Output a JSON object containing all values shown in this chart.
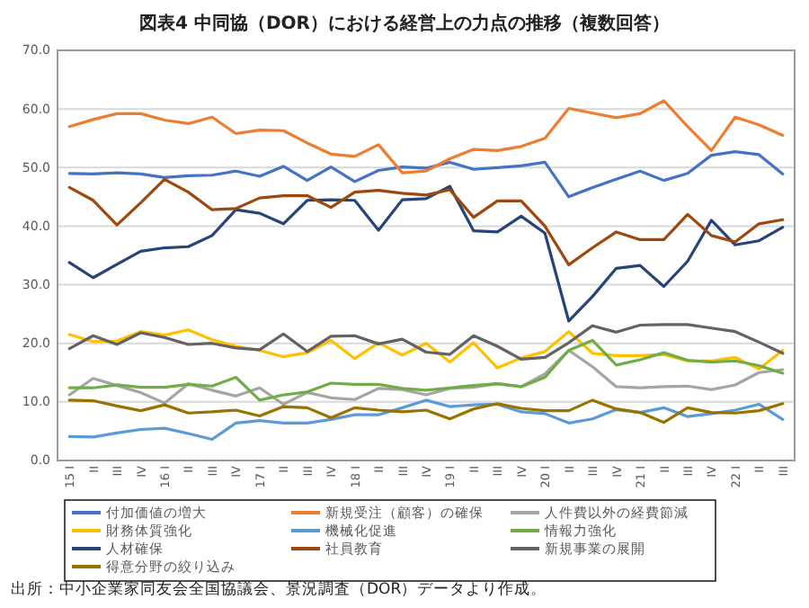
{
  "chart_data": {
    "type": "line",
    "title": "図表4 中同協（DOR）における経営上の力点の推移（複数回答）",
    "categories": [
      "15 I",
      "II",
      "III",
      "IV",
      "16 I",
      "II",
      "III",
      "IV",
      "17 I",
      "II",
      "III",
      "IV",
      "18 I",
      "II",
      "III",
      "IV",
      "19 I",
      "II",
      "III",
      "IV",
      "20 I",
      "II",
      "III",
      "IV",
      "21 I",
      "II",
      "III",
      "IV",
      "22 I",
      "II",
      "III"
    ],
    "series": [
      {
        "name": "付加価値の増大",
        "color": "#4472c4",
        "values": [
          49,
          48.9,
          49.1,
          48.9,
          48.3,
          48.6,
          48.7,
          49.4,
          48.5,
          50.2,
          47.8,
          50.1,
          47.6,
          49.5,
          50.1,
          49.9,
          50.9,
          49.7,
          50,
          50.3,
          50.9,
          45,
          46.6,
          48,
          49.4,
          47.8,
          49,
          52.1,
          52.7,
          52.2,
          48.9
        ]
      },
      {
        "name": "新規受注（顧客）の確保",
        "color": "#ed7d31",
        "values": [
          57,
          58.2,
          59.2,
          59.2,
          58.1,
          57.5,
          58.6,
          55.8,
          56.4,
          56.3,
          54.2,
          52.3,
          51.9,
          53.9,
          49.1,
          49.4,
          51.5,
          53.1,
          52.9,
          53.6,
          55,
          60.1,
          59.3,
          58.5,
          59.2,
          61.4,
          57,
          52.9,
          58.6,
          57.3,
          55.5
        ]
      },
      {
        "name": "人件費以外の経費節減",
        "color": "#a5a5a5",
        "values": [
          11.2,
          14,
          12.8,
          11.6,
          9.8,
          13.1,
          12,
          11,
          12.4,
          9.6,
          11.6,
          10.7,
          10.4,
          12.3,
          12.1,
          11.2,
          12.3,
          12.5,
          13.1,
          12.6,
          14.8,
          18.8,
          16,
          12.6,
          12.4,
          12.6,
          12.7,
          12.1,
          12.9,
          15,
          15.5
        ]
      },
      {
        "name": "財務体質強化",
        "color": "#ffc000",
        "values": [
          21.5,
          20.3,
          20.4,
          22,
          21.4,
          22.3,
          20.6,
          19.5,
          18.8,
          17.7,
          18.4,
          20.5,
          17.4,
          20.1,
          18,
          20,
          16.8,
          20.1,
          15.8,
          17.5,
          18.6,
          22,
          18.3,
          17.9,
          17.9,
          18.1,
          17,
          17,
          17.6,
          15.6,
          18.8
        ]
      },
      {
        "name": "機械化促進",
        "color": "#5b9bd5",
        "values": [
          4.1,
          4,
          4.7,
          5.3,
          5.5,
          4.6,
          3.6,
          6.4,
          6.8,
          6.4,
          6.4,
          7,
          7.8,
          7.8,
          9,
          10.3,
          9.2,
          9.5,
          9.6,
          8.3,
          8,
          6.4,
          7.1,
          8.7,
          8.2,
          9,
          7.5,
          8,
          8.6,
          9.6,
          7
        ]
      },
      {
        "name": "情報力強化",
        "color": "#70ad47",
        "values": [
          12.4,
          12.4,
          12.9,
          12.5,
          12.5,
          13,
          12.7,
          14.2,
          10.3,
          11.2,
          11.7,
          13.2,
          13,
          13,
          12.3,
          12,
          12.4,
          12.8,
          13.1,
          12.6,
          14.2,
          18.8,
          20.5,
          16.3,
          17.2,
          18.4,
          17.1,
          16.8,
          17,
          16.2,
          14.9
        ]
      },
      {
        "name": "人材確保",
        "color": "#264478",
        "values": [
          33.8,
          31.2,
          33.5,
          35.7,
          36.3,
          36.5,
          38.4,
          42.8,
          42.2,
          40.4,
          44.4,
          44.5,
          44.4,
          39.3,
          44.5,
          44.7,
          46.8,
          39.2,
          39,
          41.7,
          38.8,
          23.8,
          28,
          32.8,
          33.3,
          29.7,
          34,
          41,
          36.8,
          37.5,
          39.8
        ]
      },
      {
        "name": "社員教育",
        "color": "#9e480e",
        "values": [
          46.6,
          44.4,
          40.2,
          44,
          48,
          45.8,
          42.8,
          43,
          44.8,
          45.2,
          45.2,
          43.2,
          45.8,
          46.1,
          45.6,
          45.3,
          46.2,
          41.5,
          44.3,
          44.3,
          40,
          33.4,
          36.3,
          39,
          37.7,
          37.7,
          42,
          38.4,
          37.3,
          40.4,
          41.1
        ]
      },
      {
        "name": "新規事業の展開",
        "color": "#636363",
        "values": [
          19.1,
          21.3,
          19.8,
          21.8,
          21,
          19.8,
          20,
          19.2,
          18.9,
          21.6,
          18.6,
          21.2,
          21.3,
          19.9,
          20.7,
          18.5,
          18.1,
          21.3,
          19.5,
          17.3,
          17.6,
          20.1,
          23,
          21.9,
          23.1,
          23.2,
          23.2,
          22.6,
          22,
          20.2,
          18.3
        ]
      },
      {
        "name": "得意分野の絞り込み",
        "color": "#997300",
        "values": [
          10.3,
          10.2,
          9.3,
          8.5,
          9.5,
          8.1,
          8.3,
          8.6,
          7.6,
          9.2,
          9,
          7.3,
          9,
          8.6,
          8.3,
          8.6,
          7.1,
          8.8,
          9.7,
          8.9,
          8.5,
          8.5,
          10.3,
          8.8,
          8.2,
          6.5,
          9,
          8.2,
          8.1,
          8.5,
          9.7
        ]
      }
    ],
    "ylim": [
      0,
      70
    ],
    "yticks": [
      {
        "value": 0,
        "label": "0.0"
      },
      {
        "value": 10,
        "label": "10.0"
      },
      {
        "value": 20,
        "label": "20.0"
      },
      {
        "value": 30,
        "label": "30.0"
      },
      {
        "value": 40,
        "label": "40.0"
      },
      {
        "value": 50,
        "label": "50.0"
      },
      {
        "value": 60,
        "label": "60.0"
      },
      {
        "value": 70,
        "label": "70.0"
      }
    ],
    "grid": "y",
    "legend": "bottom",
    "marker": "none",
    "line_style": "solid",
    "annotations": [
      "出所：中小企業家同友会全国協議会、景況調査（DOR）データより作成。"
    ]
  }
}
